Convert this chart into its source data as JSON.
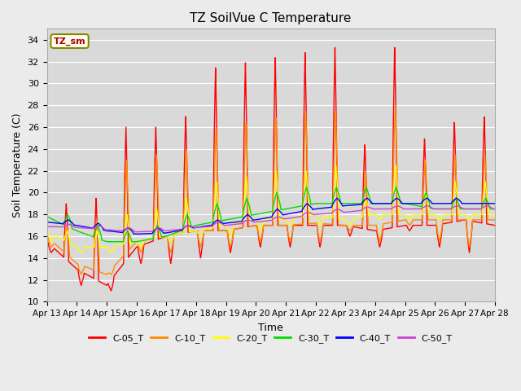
{
  "title": "TZ SoilVue C Temperature",
  "ylabel": "Soil Temperature (C)",
  "xlabel": "Time",
  "ylim": [
    10,
    35
  ],
  "yticks": [
    10,
    12,
    14,
    16,
    18,
    20,
    22,
    24,
    26,
    28,
    30,
    32,
    34
  ],
  "xtick_labels": [
    "Apr 13",
    "Apr 14",
    "Apr 15",
    "Apr 16",
    "Apr 17",
    "Apr 18",
    "Apr 19",
    "Apr 20",
    "Apr 21",
    "Apr 22",
    "Apr 23",
    "Apr 24",
    "Apr 25",
    "Apr 26",
    "Apr 27",
    "Apr 28"
  ],
  "series_colors": {
    "C-05_T": "#ff0000",
    "C-10_T": "#ff8c00",
    "C-20_T": "#ffff00",
    "C-30_T": "#00dd00",
    "C-40_T": "#0000ff",
    "C-50_T": "#cc44cc"
  },
  "legend_label": "TZ_sm",
  "background_color": "#ebebeb",
  "plot_bg_color": "#d9d9d9",
  "title_fontsize": 11
}
